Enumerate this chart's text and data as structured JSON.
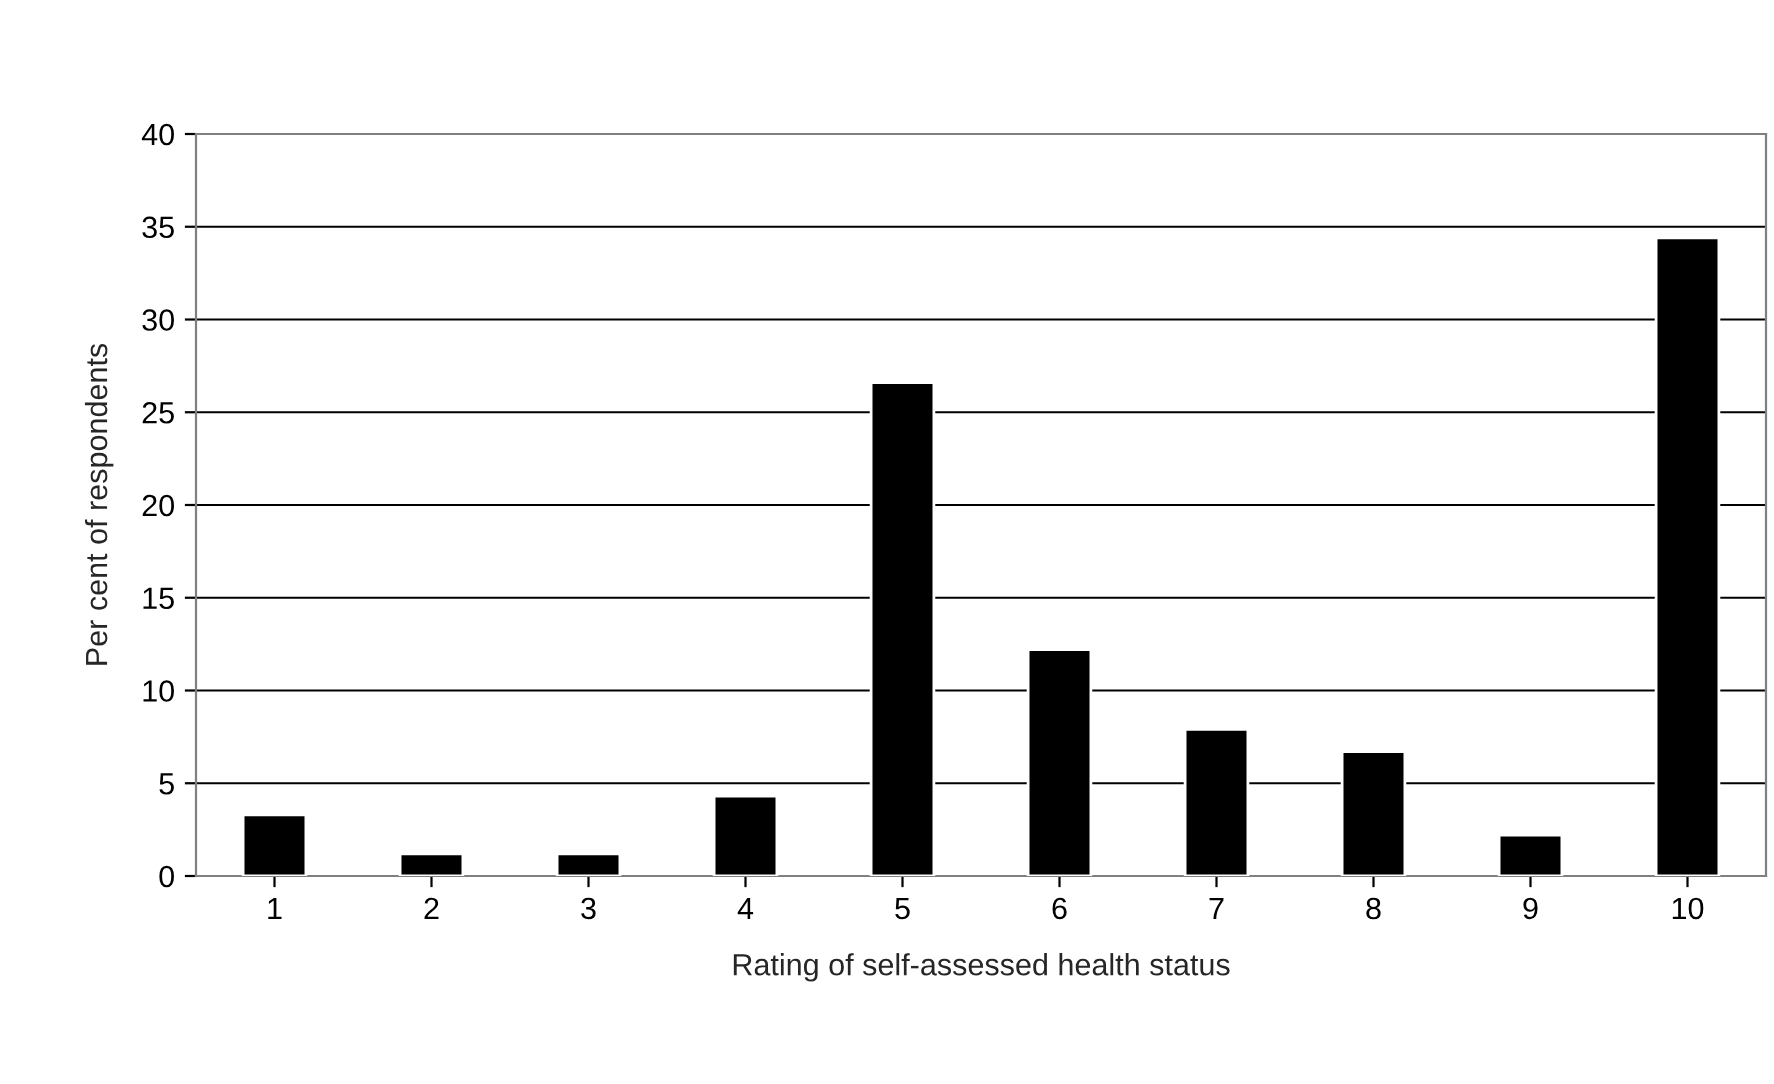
{
  "chart_data": {
    "type": "bar",
    "xlabel": "Rating of self-assessed health status",
    "ylabel": "Per cent of respondents",
    "categories": [
      "1",
      "2",
      "3",
      "4",
      "5",
      "6",
      "7",
      "8",
      "9",
      "10"
    ],
    "values": [
      3.3,
      1.2,
      1.2,
      4.3,
      26.6,
      12.2,
      7.9,
      6.7,
      2.2,
      34.4
    ],
    "color": "#000000",
    "ylim": [
      0,
      40
    ],
    "yticks": [
      0,
      5,
      10,
      15,
      20,
      25,
      30,
      35,
      40
    ],
    "grid": "y",
    "legend": false
  }
}
